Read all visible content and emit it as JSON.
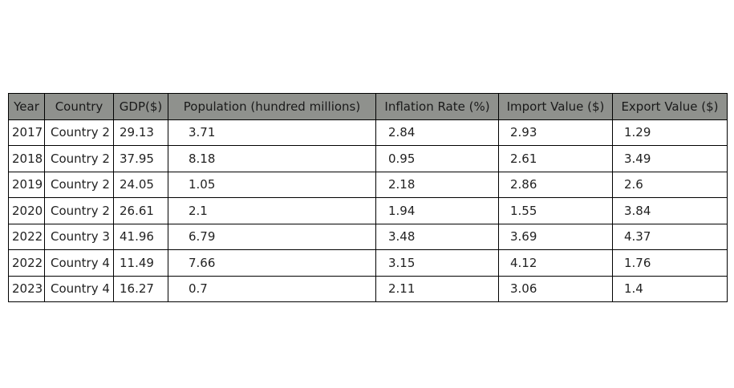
{
  "chart_data": {
    "type": "table",
    "columns": [
      "Year",
      "Country",
      "GDP($)",
      "Population (hundred millions)",
      "Inflation Rate (%)",
      "Import Value ($)",
      "Export Value ($)"
    ],
    "rows": [
      [
        "2017",
        "Country 2",
        "29.13",
        "3.71",
        "2.84",
        "2.93",
        "1.29"
      ],
      [
        "2018",
        "Country 2",
        "37.95",
        "8.18",
        "0.95",
        "2.61",
        "3.49"
      ],
      [
        "2019",
        "Country 2",
        "24.05",
        "1.05",
        "2.18",
        "2.86",
        "2.6"
      ],
      [
        "2020",
        "Country 2",
        "26.61",
        "2.1",
        "1.94",
        "1.55",
        "3.84"
      ],
      [
        "2022",
        "Country 3",
        "41.96",
        "6.79",
        "3.48",
        "3.69",
        "4.37"
      ],
      [
        "2022",
        "Country 4",
        "11.49",
        "7.66",
        "3.15",
        "4.12",
        "1.76"
      ],
      [
        "2023",
        "Country 4",
        "16.27",
        "0.7",
        "2.11",
        "3.06",
        "1.4"
      ]
    ],
    "header_color": "#8f918d"
  }
}
